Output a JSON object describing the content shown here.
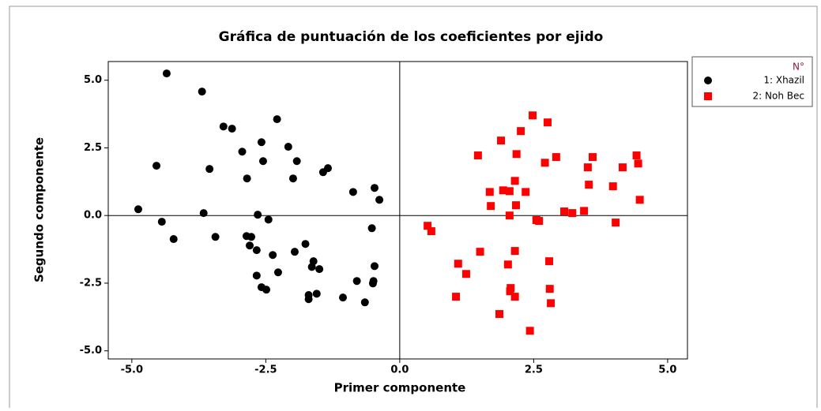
{
  "chart_data": {
    "type": "scatter",
    "title": "Gráfica de puntuación de los coeficientes por ejido",
    "x_label": "Primer componente",
    "y_label": "Segundo componente",
    "legend_title": "N°",
    "legend": "right",
    "xlim": [
      -5.44,
      5.37
    ],
    "ylim": [
      -5.3,
      5.69
    ],
    "xticks": [
      {
        "value": -5,
        "label": "-5.0"
      },
      -2.5,
      {
        "value": 0,
        "label": "0.0"
      },
      2.5,
      {
        "value": 5,
        "label": "5.0"
      }
    ],
    "yticks": [
      {
        "value": -5,
        "label": "-5.0"
      },
      -2.5,
      {
        "value": 0,
        "label": "0.0"
      },
      2.5,
      {
        "value": 5,
        "label": "5.0"
      }
    ],
    "series": [
      {
        "name": "1: Xhazil",
        "color": "#000000",
        "marker": "circle",
        "x": [
          -4.35,
          -3.69,
          -4.54,
          -4.88,
          -4.44,
          -4.22,
          -3.66,
          -3.55,
          -3.44,
          -3.29,
          -3.13,
          -2.94,
          -2.85,
          -2.86,
          -2.77,
          -2.8,
          -2.65,
          -2.58,
          -2.55,
          -2.45,
          -2.67,
          -2.67,
          -2.58,
          -2.49,
          -2.37,
          -2.27,
          -2.29,
          -2.08,
          -1.92,
          -1.99,
          -1.96,
          -1.76,
          -1.64,
          -1.61,
          -1.5,
          -1.43,
          -1.34,
          -1.7,
          -1.7,
          -1.55,
          -1.06,
          -0.87,
          -0.8,
          -0.65,
          -0.52,
          -0.49,
          -0.5,
          -0.47,
          -0.38,
          -0.47
        ],
        "y": [
          5.25,
          4.58,
          1.84,
          0.23,
          -0.23,
          -0.87,
          0.09,
          1.72,
          -0.79,
          3.29,
          3.21,
          2.36,
          1.37,
          -0.76,
          -0.79,
          -1.11,
          0.03,
          2.71,
          2.01,
          -0.15,
          -1.28,
          -2.22,
          -2.65,
          -2.74,
          -1.46,
          -2.1,
          3.56,
          2.54,
          2.01,
          1.37,
          -1.34,
          -1.05,
          -1.9,
          -1.69,
          -1.98,
          1.6,
          1.75,
          -2.94,
          -3.09,
          -2.89,
          -3.03,
          0.87,
          -2.42,
          -3.21,
          -0.47,
          -2.42,
          -2.51,
          1.02,
          0.58,
          -1.87
        ]
      },
      {
        "name": "2: Noh Bec",
        "color": "#ff0000",
        "marker": "square",
        "x": [
          0.52,
          0.59,
          1.09,
          1.24,
          1.05,
          1.46,
          1.5,
          1.68,
          1.7,
          1.86,
          1.89,
          1.93,
          2.05,
          2.02,
          2.07,
          2.05,
          2.06,
          2.15,
          2.17,
          2.18,
          2.15,
          2.15,
          2.26,
          2.35,
          2.48,
          2.55,
          2.6,
          2.43,
          2.71,
          2.76,
          2.79,
          2.8,
          2.82,
          2.92,
          3.07,
          3.22,
          3.44,
          3.51,
          3.53,
          3.6,
          3.98,
          4.03,
          4.16,
          4.42,
          4.45,
          4.48
        ],
        "y": [
          -0.38,
          -0.58,
          -1.78,
          -2.16,
          -3.0,
          2.22,
          -1.34,
          0.87,
          0.35,
          -3.64,
          2.77,
          0.93,
          0.9,
          -1.81,
          -2.68,
          0.0,
          -2.8,
          1.28,
          0.38,
          2.27,
          -1.31,
          -3.0,
          3.12,
          0.87,
          3.7,
          -0.17,
          -0.2,
          -4.26,
          1.95,
          3.44,
          -1.69,
          -2.71,
          -3.24,
          2.16,
          0.15,
          0.09,
          0.17,
          1.78,
          1.14,
          2.16,
          1.08,
          -0.26,
          1.78,
          2.22,
          1.92,
          0.58
        ]
      }
    ]
  }
}
